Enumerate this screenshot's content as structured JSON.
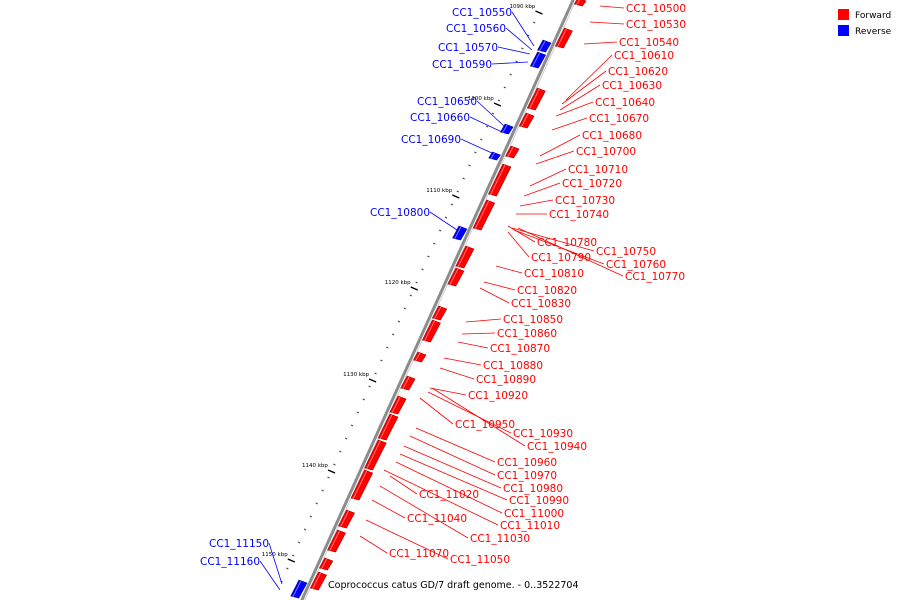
{
  "colors": {
    "forward": "#ff0000",
    "reverse": "#0000ff",
    "backbone": "#8c8c8c",
    "tick": "#000000"
  },
  "legend": [
    {
      "label": "Forward",
      "strand": "forward"
    },
    {
      "label": "Reverse",
      "strand": "reverse"
    }
  ],
  "footer": "Coprococcus catus GD/7 draft genome. - 0..3522704",
  "ticks": [
    "1090 kbp",
    "1100 kbp",
    "1110 kbp",
    "1120 kbp",
    "1130 kbp",
    "1140 kbp",
    "1150 kbp"
  ],
  "genes_forward": [
    "CC1_10500",
    "CC1_10530",
    "CC1_10540",
    "CC1_10610",
    "CC1_10620",
    "CC1_10630",
    "CC1_10640",
    "CC1_10670",
    "CC1_10680",
    "CC1_10700",
    "CC1_10710",
    "CC1_10720",
    "CC1_10730",
    "CC1_10740",
    "CC1_10780",
    "CC1_10750",
    "CC1_10790",
    "CC1_10760",
    "CC1_10770",
    "CC1_10810",
    "CC1_10820",
    "CC1_10830",
    "CC1_10850",
    "CC1_10860",
    "CC1_10870",
    "CC1_10880",
    "CC1_10890",
    "CC1_10920",
    "CC1_10950",
    "CC1_10930",
    "CC1_10940",
    "CC1_10960",
    "CC1_10970",
    "CC1_10980",
    "CC1_10990",
    "CC1_11000",
    "CC1_11020",
    "CC1_11010",
    "CC1_11040",
    "CC1_11030",
    "CC1_11070",
    "CC1_11050"
  ],
  "genes_reverse": [
    "CC1_10550",
    "CC1_10560",
    "CC1_10570",
    "CC1_10590",
    "CC1_10650",
    "CC1_10660",
    "CC1_10690",
    "CC1_10800",
    "CC1_11150",
    "CC1_11160"
  ]
}
